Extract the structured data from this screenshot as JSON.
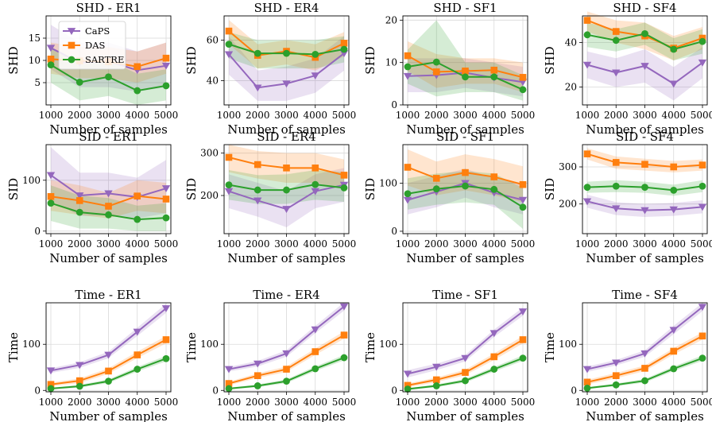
{
  "figure": {
    "x_label": "Number of samples",
    "colors": {
      "CaPS": "#9467bd",
      "DAS": "#ff7f0e",
      "SARTRE": "#2ca02c"
    }
  },
  "legend": {
    "entries": [
      {
        "name": "CaPS",
        "color": "#9467bd",
        "marker": "triangle-down"
      },
      {
        "name": "DAS",
        "color": "#ff7f0e",
        "marker": "square"
      },
      {
        "name": "SARTRE",
        "color": "#2ca02c",
        "marker": "circle"
      }
    ]
  },
  "chart_data": [
    {
      "type": "line",
      "title": "SHD - ER1",
      "xlabel": "Number of samples",
      "ylabel": "SHD",
      "x": [
        1000,
        2000,
        3000,
        4000,
        5000
      ],
      "ylim": [
        0,
        20
      ],
      "yticks": [
        5,
        10,
        15
      ],
      "series": [
        {
          "name": "CaPS",
          "values": [
            12.8,
            9.5,
            9.8,
            7.8,
            8.8
          ],
          "lower": [
            8,
            4,
            4,
            3,
            4
          ],
          "upper": [
            18,
            14,
            14,
            12,
            14
          ]
        },
        {
          "name": "DAS",
          "values": [
            10.3,
            9.9,
            9.7,
            8.6,
            10.5
          ],
          "lower": [
            7,
            6,
            6,
            5,
            7
          ],
          "upper": [
            14,
            13,
            13,
            12,
            14
          ]
        },
        {
          "name": "SARTRE",
          "values": [
            9.0,
            5.1,
            6.3,
            3.2,
            4.3
          ],
          "lower": [
            5,
            1,
            2,
            0,
            1
          ],
          "upper": [
            13,
            9,
            10,
            7,
            8
          ]
        }
      ]
    },
    {
      "type": "line",
      "title": "SHD - ER4",
      "xlabel": "Number of samples",
      "ylabel": "SHD",
      "x": [
        1000,
        2000,
        3000,
        4000,
        5000
      ],
      "ylim": [
        28,
        72
      ],
      "yticks": [
        40,
        60
      ],
      "series": [
        {
          "name": "CaPS",
          "values": [
            53,
            36.5,
            38.5,
            42.5,
            53.5
          ],
          "lower": [
            43,
            30,
            30,
            34,
            45
          ],
          "upper": [
            62,
            45,
            47,
            51,
            62
          ]
        },
        {
          "name": "DAS",
          "values": [
            64.5,
            52.5,
            54.5,
            51.5,
            58.5
          ],
          "lower": [
            58,
            46,
            48,
            45,
            52
          ],
          "upper": [
            70,
            58,
            60,
            58,
            64
          ]
        },
        {
          "name": "SARTRE",
          "values": [
            58,
            53.5,
            53.5,
            53,
            55.5
          ],
          "lower": [
            51,
            46,
            46,
            46,
            49
          ],
          "upper": [
            64,
            60,
            60,
            60,
            62
          ]
        }
      ]
    },
    {
      "type": "line",
      "title": "SHD - SF1",
      "xlabel": "Number of samples",
      "ylabel": "SHD",
      "x": [
        1000,
        2000,
        3000,
        4000,
        5000
      ],
      "ylim": [
        0,
        21
      ],
      "yticks": [
        0,
        10,
        20
      ],
      "series": [
        {
          "name": "CaPS",
          "values": [
            6.8,
            7.0,
            7.6,
            6.4,
            5.4
          ],
          "lower": [
            3,
            3,
            4,
            3,
            2
          ],
          "upper": [
            11,
            11,
            11,
            10,
            9
          ]
        },
        {
          "name": "DAS",
          "values": [
            11.6,
            7.8,
            8.0,
            8.2,
            6.5
          ],
          "lower": [
            8,
            4,
            5,
            5,
            3
          ],
          "upper": [
            15,
            12,
            11,
            11,
            10
          ]
        },
        {
          "name": "SARTRE",
          "values": [
            9.0,
            10.1,
            6.6,
            6.6,
            3.6
          ],
          "lower": [
            5,
            2,
            3,
            3,
            1
          ],
          "upper": [
            13,
            20,
            10,
            10,
            7
          ]
        }
      ]
    },
    {
      "type": "line",
      "title": "SHD - SF4",
      "xlabel": "Number of samples",
      "ylabel": "SHD",
      "x": [
        1000,
        2000,
        3000,
        4000,
        5000
      ],
      "ylim": [
        12,
        52
      ],
      "yticks": [
        20,
        40
      ],
      "series": [
        {
          "name": "CaPS",
          "values": [
            30,
            26.5,
            29.5,
            21.5,
            31
          ],
          "lower": [
            24,
            20,
            22,
            14,
            24
          ],
          "upper": [
            36,
            33,
            37,
            29,
            38
          ]
        },
        {
          "name": "DAS",
          "values": [
            50,
            45,
            43,
            37.5,
            42
          ],
          "lower": [
            45,
            40,
            37,
            32,
            37
          ],
          "upper": [
            54,
            50,
            49,
            43,
            47
          ]
        },
        {
          "name": "SARTRE",
          "values": [
            43.5,
            41,
            44,
            37,
            40.5
          ],
          "lower": [
            38,
            36,
            39,
            32,
            35
          ],
          "upper": [
            49,
            46,
            49,
            42,
            46
          ]
        }
      ]
    },
    {
      "type": "line",
      "title": "SID - ER1",
      "xlabel": "Number of samples",
      "ylabel": "SID",
      "x": [
        1000,
        2000,
        3000,
        4000,
        5000
      ],
      "ylim": [
        -5,
        170
      ],
      "yticks": [
        0,
        100
      ],
      "series": [
        {
          "name": "CaPS",
          "values": [
            110,
            70,
            74,
            67,
            84
          ],
          "lower": [
            60,
            30,
            30,
            25,
            35
          ],
          "upper": [
            165,
            115,
            115,
            105,
            140
          ]
        },
        {
          "name": "DAS",
          "values": [
            68,
            60,
            49,
            69,
            63
          ],
          "lower": [
            40,
            32,
            25,
            40,
            35
          ],
          "upper": [
            100,
            90,
            75,
            100,
            95
          ]
        },
        {
          "name": "SARTRE",
          "values": [
            55,
            37,
            32,
            23,
            26
          ],
          "lower": [
            20,
            5,
            5,
            0,
            0
          ],
          "upper": [
            90,
            70,
            65,
            50,
            55
          ]
        }
      ]
    },
    {
      "type": "line",
      "title": "SID - ER4",
      "xlabel": "Number of samples",
      "ylabel": "SID",
      "x": [
        1000,
        2000,
        3000,
        4000,
        5000
      ],
      "ylim": [
        110,
        320
      ],
      "yticks": [
        200,
        300
      ],
      "series": [
        {
          "name": "CaPS",
          "values": [
            210,
            188,
            168,
            210,
            225
          ],
          "lower": [
            170,
            150,
            125,
            170,
            185
          ],
          "upper": [
            250,
            230,
            210,
            250,
            265
          ]
        },
        {
          "name": "DAS",
          "values": [
            290,
            273,
            265,
            265,
            248
          ],
          "lower": [
            255,
            240,
            230,
            230,
            215
          ],
          "upper": [
            320,
            305,
            300,
            300,
            285
          ]
        },
        {
          "name": "SARTRE",
          "values": [
            225,
            213,
            213,
            226,
            218
          ],
          "lower": [
            190,
            180,
            180,
            190,
            185
          ],
          "upper": [
            260,
            248,
            250,
            260,
            255
          ]
        }
      ]
    },
    {
      "type": "line",
      "title": "SID - SF1",
      "xlabel": "Number of samples",
      "ylabel": "SID",
      "x": [
        1000,
        2000,
        3000,
        4000,
        5000
      ],
      "ylim": [
        -5,
        180
      ],
      "yticks": [
        0,
        100
      ],
      "series": [
        {
          "name": "CaPS",
          "values": [
            65,
            82,
            100,
            80,
            65
          ],
          "lower": [
            35,
            50,
            70,
            50,
            35
          ],
          "upper": [
            100,
            115,
            130,
            110,
            100
          ]
        },
        {
          "name": "DAS",
          "values": [
            133,
            110,
            122,
            113,
            97
          ],
          "lower": [
            95,
            75,
            85,
            75,
            60
          ],
          "upper": [
            170,
            145,
            160,
            150,
            135
          ]
        },
        {
          "name": "SARTRE",
          "values": [
            78,
            88,
            94,
            87,
            50
          ],
          "lower": [
            45,
            55,
            60,
            55,
            5
          ],
          "upper": [
            110,
            120,
            125,
            120,
            90
          ]
        }
      ]
    },
    {
      "type": "line",
      "title": "SID - SF4",
      "xlabel": "Number of samples",
      "ylabel": "SID",
      "x": [
        1000,
        2000,
        3000,
        4000,
        5000
      ],
      "ylim": [
        120,
        360
      ],
      "yticks": [
        200,
        300
      ],
      "series": [
        {
          "name": "CaPS",
          "values": [
            207,
            188,
            183,
            185,
            192
          ],
          "lower": [
            190,
            170,
            165,
            168,
            175
          ],
          "upper": [
            225,
            205,
            200,
            203,
            210
          ]
        },
        {
          "name": "DAS",
          "values": [
            335,
            312,
            307,
            300,
            305
          ],
          "lower": [
            320,
            295,
            290,
            285,
            290
          ],
          "upper": [
            350,
            328,
            322,
            316,
            320
          ]
        },
        {
          "name": "SARTRE",
          "values": [
            245,
            248,
            245,
            237,
            248
          ],
          "lower": [
            230,
            232,
            230,
            222,
            232
          ],
          "upper": [
            260,
            264,
            260,
            252,
            264
          ]
        }
      ]
    },
    {
      "type": "line",
      "title": "Time - ER1",
      "xlabel": "Number of samples",
      "ylabel": "Time",
      "x": [
        1000,
        2000,
        3000,
        4000,
        5000
      ],
      "ylim": [
        -3,
        190
      ],
      "yticks": [
        0,
        100
      ],
      "series": [
        {
          "name": "CaPS",
          "values": [
            43,
            55,
            77,
            127,
            178
          ],
          "lower": [
            38,
            49,
            70,
            118,
            168
          ],
          "upper": [
            48,
            61,
            84,
            136,
            188
          ]
        },
        {
          "name": "DAS",
          "values": [
            13,
            21,
            42,
            77,
            110
          ],
          "lower": [
            9,
            16,
            36,
            70,
            102
          ],
          "upper": [
            17,
            26,
            48,
            84,
            118
          ]
        },
        {
          "name": "SARTRE",
          "values": [
            4,
            9,
            20,
            46,
            69
          ],
          "lower": [
            2,
            6,
            16,
            41,
            63
          ],
          "upper": [
            6,
            12,
            24,
            51,
            75
          ]
        }
      ]
    },
    {
      "type": "line",
      "title": "Time - ER4",
      "xlabel": "Number of samples",
      "ylabel": "Time",
      "x": [
        1000,
        2000,
        3000,
        4000,
        5000
      ],
      "ylim": [
        -3,
        190
      ],
      "yticks": [
        0,
        100
      ],
      "series": [
        {
          "name": "CaPS",
          "values": [
            46,
            58,
            80,
            132,
            182
          ],
          "lower": [
            41,
            52,
            73,
            124,
            173
          ],
          "upper": [
            51,
            64,
            87,
            140,
            191
          ]
        },
        {
          "name": "DAS",
          "values": [
            15,
            32,
            46,
            84,
            120
          ],
          "lower": [
            11,
            27,
            40,
            77,
            112
          ],
          "upper": [
            19,
            37,
            52,
            91,
            128
          ]
        },
        {
          "name": "SARTRE",
          "values": [
            4,
            10,
            20,
            47,
            71
          ],
          "lower": [
            2,
            7,
            16,
            42,
            65
          ],
          "upper": [
            6,
            13,
            24,
            52,
            77
          ]
        }
      ]
    },
    {
      "type": "line",
      "title": "Time - SF1",
      "xlabel": "Number of samples",
      "ylabel": "Time",
      "x": [
        1000,
        2000,
        3000,
        4000,
        5000
      ],
      "ylim": [
        -3,
        190
      ],
      "yticks": [
        0,
        100
      ],
      "series": [
        {
          "name": "CaPS",
          "values": [
            36,
            51,
            70,
            124,
            171
          ],
          "lower": [
            28,
            44,
            63,
            116,
            162
          ],
          "upper": [
            44,
            58,
            77,
            132,
            180
          ]
        },
        {
          "name": "DAS",
          "values": [
            11,
            23,
            39,
            73,
            110
          ],
          "lower": [
            7,
            18,
            33,
            66,
            102
          ],
          "upper": [
            15,
            28,
            45,
            80,
            118
          ]
        },
        {
          "name": "SARTRE",
          "values": [
            3,
            10,
            21,
            46,
            70
          ],
          "lower": [
            1,
            7,
            17,
            41,
            64
          ],
          "upper": [
            5,
            13,
            25,
            51,
            76
          ]
        }
      ]
    },
    {
      "type": "line",
      "title": "Time - SF4",
      "xlabel": "Number of samples",
      "ylabel": "Time",
      "x": [
        1000,
        2000,
        3000,
        4000,
        5000
      ],
      "ylim": [
        -3,
        190
      ],
      "yticks": [
        0,
        100
      ],
      "series": [
        {
          "name": "CaPS",
          "values": [
            46,
            60,
            80,
            131,
            181
          ],
          "lower": [
            40,
            54,
            73,
            122,
            172
          ],
          "upper": [
            52,
            66,
            87,
            140,
            190
          ]
        },
        {
          "name": "DAS",
          "values": [
            18,
            32,
            48,
            85,
            118
          ],
          "lower": [
            13,
            26,
            42,
            78,
            110
          ],
          "upper": [
            23,
            38,
            54,
            92,
            126
          ]
        },
        {
          "name": "SARTRE",
          "values": [
            5,
            12,
            21,
            47,
            70
          ],
          "lower": [
            3,
            9,
            17,
            42,
            64
          ],
          "upper": [
            7,
            15,
            25,
            52,
            76
          ]
        }
      ]
    }
  ]
}
